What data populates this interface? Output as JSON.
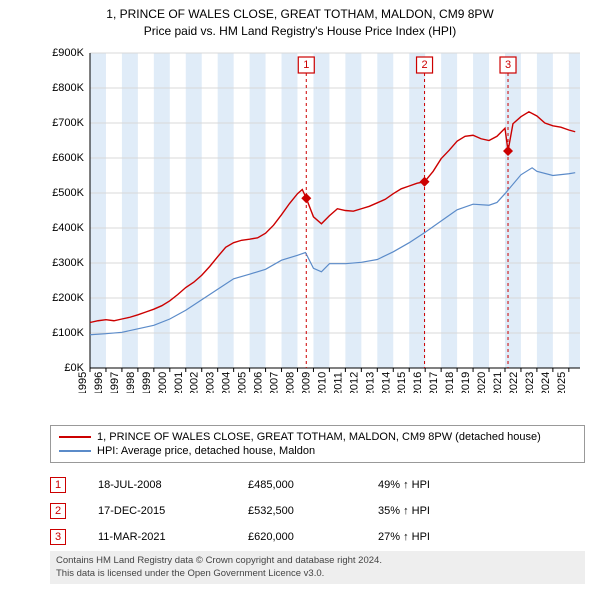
{
  "title_line1": "1, PRINCE OF WALES CLOSE, GREAT TOTHAM, MALDON, CM9 8PW",
  "title_line2": "Price paid vs. HM Land Registry's House Price Index (HPI)",
  "chart": {
    "type": "line",
    "background_color": "#ffffff",
    "shade_band_color": "#e0ecf8",
    "grid_color": "#d8d8d8",
    "x": {
      "min": 1995,
      "max": 2025.7,
      "ticks": [
        1995,
        1996,
        1997,
        1998,
        1999,
        2000,
        2001,
        2002,
        2003,
        2004,
        2005,
        2006,
        2007,
        2008,
        2009,
        2010,
        2011,
        2012,
        2013,
        2014,
        2015,
        2016,
        2017,
        2018,
        2019,
        2020,
        2021,
        2022,
        2023,
        2024,
        2025
      ]
    },
    "y": {
      "min": 0,
      "max": 900,
      "label_prefix": "£",
      "label_suffix": "K",
      "ticks": [
        0,
        100,
        200,
        300,
        400,
        500,
        600,
        700,
        800,
        900
      ]
    },
    "shade_bands": [
      {
        "start": 1995,
        "end": 1996
      },
      {
        "start": 1997,
        "end": 1998
      },
      {
        "start": 1999,
        "end": 2000
      },
      {
        "start": 2001,
        "end": 2002
      },
      {
        "start": 2003,
        "end": 2004
      },
      {
        "start": 2005,
        "end": 2006
      },
      {
        "start": 2007,
        "end": 2008
      },
      {
        "start": 2009,
        "end": 2010
      },
      {
        "start": 2011,
        "end": 2012
      },
      {
        "start": 2013,
        "end": 2014
      },
      {
        "start": 2015,
        "end": 2016
      },
      {
        "start": 2017,
        "end": 2018
      },
      {
        "start": 2019,
        "end": 2020
      },
      {
        "start": 2021,
        "end": 2022
      },
      {
        "start": 2023,
        "end": 2024
      },
      {
        "start": 2025,
        "end": 2025.7
      }
    ],
    "series": [
      {
        "name": "property",
        "color": "#cc0000",
        "width": 1.4,
        "points": [
          [
            1995,
            130
          ],
          [
            1995.5,
            135
          ],
          [
            1996,
            138
          ],
          [
            1996.5,
            135
          ],
          [
            1997,
            140
          ],
          [
            1997.5,
            145
          ],
          [
            1998,
            152
          ],
          [
            1998.5,
            160
          ],
          [
            1999,
            168
          ],
          [
            1999.5,
            178
          ],
          [
            2000,
            192
          ],
          [
            2000.5,
            210
          ],
          [
            2001,
            230
          ],
          [
            2001.5,
            245
          ],
          [
            2002,
            265
          ],
          [
            2002.5,
            290
          ],
          [
            2003,
            318
          ],
          [
            2003.5,
            345
          ],
          [
            2004,
            358
          ],
          [
            2004.5,
            365
          ],
          [
            2005,
            368
          ],
          [
            2005.5,
            372
          ],
          [
            2006,
            385
          ],
          [
            2006.5,
            408
          ],
          [
            2007,
            438
          ],
          [
            2007.5,
            470
          ],
          [
            2008,
            498
          ],
          [
            2008.3,
            510
          ],
          [
            2008.55,
            485
          ],
          [
            2009,
            432
          ],
          [
            2009.5,
            412
          ],
          [
            2010,
            435
          ],
          [
            2010.5,
            455
          ],
          [
            2011,
            450
          ],
          [
            2011.5,
            448
          ],
          [
            2012,
            455
          ],
          [
            2012.5,
            462
          ],
          [
            2013,
            472
          ],
          [
            2013.5,
            482
          ],
          [
            2014,
            498
          ],
          [
            2014.5,
            512
          ],
          [
            2015,
            520
          ],
          [
            2015.5,
            528
          ],
          [
            2015.96,
            532
          ],
          [
            2016.5,
            562
          ],
          [
            2017,
            598
          ],
          [
            2017.5,
            622
          ],
          [
            2018,
            648
          ],
          [
            2018.5,
            662
          ],
          [
            2019,
            665
          ],
          [
            2019.5,
            655
          ],
          [
            2020,
            650
          ],
          [
            2020.5,
            662
          ],
          [
            2021,
            685
          ],
          [
            2021.19,
            620
          ],
          [
            2021.5,
            698
          ],
          [
            2022,
            718
          ],
          [
            2022.5,
            732
          ],
          [
            2023,
            720
          ],
          [
            2023.5,
            700
          ],
          [
            2024,
            692
          ],
          [
            2024.5,
            688
          ],
          [
            2025,
            680
          ],
          [
            2025.4,
            675
          ]
        ]
      },
      {
        "name": "hpi",
        "color": "#5b8bc9",
        "width": 1.2,
        "points": [
          [
            1995,
            95
          ],
          [
            1996,
            98
          ],
          [
            1997,
            102
          ],
          [
            1998,
            112
          ],
          [
            1999,
            122
          ],
          [
            2000,
            140
          ],
          [
            2001,
            165
          ],
          [
            2002,
            195
          ],
          [
            2003,
            225
          ],
          [
            2004,
            255
          ],
          [
            2005,
            268
          ],
          [
            2006,
            282
          ],
          [
            2007,
            308
          ],
          [
            2008,
            322
          ],
          [
            2008.5,
            330
          ],
          [
            2009,
            285
          ],
          [
            2009.5,
            275
          ],
          [
            2010,
            298
          ],
          [
            2011,
            298
          ],
          [
            2012,
            302
          ],
          [
            2013,
            310
          ],
          [
            2014,
            332
          ],
          [
            2015,
            358
          ],
          [
            2016,
            388
          ],
          [
            2017,
            420
          ],
          [
            2018,
            452
          ],
          [
            2019,
            468
          ],
          [
            2020,
            465
          ],
          [
            2020.5,
            473
          ],
          [
            2021,
            498
          ],
          [
            2022,
            552
          ],
          [
            2022.7,
            572
          ],
          [
            2023,
            562
          ],
          [
            2024,
            550
          ],
          [
            2025,
            555
          ],
          [
            2025.4,
            558
          ]
        ]
      }
    ],
    "sale_markers": [
      {
        "num": "1",
        "x": 2008.55,
        "y": 485,
        "color": "#cc0000"
      },
      {
        "num": "2",
        "x": 2015.96,
        "y": 532,
        "color": "#cc0000"
      },
      {
        "num": "3",
        "x": 2021.19,
        "y": 620,
        "color": "#cc0000"
      }
    ]
  },
  "legend": {
    "rows": [
      {
        "color": "#cc0000",
        "label": "1, PRINCE OF WALES CLOSE, GREAT TOTHAM, MALDON, CM9 8PW (detached house)"
      },
      {
        "color": "#5b8bc9",
        "label": "HPI: Average price, detached house, Maldon"
      }
    ]
  },
  "sales": [
    {
      "num": "1",
      "color": "#cc0000",
      "date": "18-JUL-2008",
      "price": "£485,000",
      "delta": "49% ↑ HPI"
    },
    {
      "num": "2",
      "color": "#cc0000",
      "date": "17-DEC-2015",
      "price": "£532,500",
      "delta": "35% ↑ HPI"
    },
    {
      "num": "3",
      "color": "#cc0000",
      "date": "11-MAR-2021",
      "price": "£620,000",
      "delta": "27% ↑ HPI"
    }
  ],
  "attribution_line1": "Contains HM Land Registry data © Crown copyright and database right 2024.",
  "attribution_line2": "This data is licensed under the Open Government Licence v3.0."
}
